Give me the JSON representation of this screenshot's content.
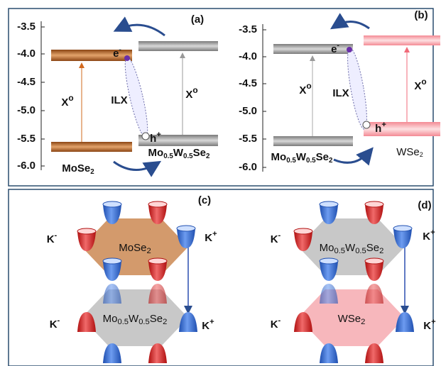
{
  "panel_labels": [
    "(a)",
    "(b)",
    "(c)",
    "(d)"
  ],
  "energy_ticks": [
    "-3.5",
    "-4.0",
    "-4.5",
    "-5.0",
    "-5.5",
    "-6.0"
  ],
  "materials": [
    [
      [
        "Mo"
      ],
      [
        "Se",
        "2"
      ]
    ],
    [
      [
        "Mo",
        "0.5"
      ],
      [
        "W",
        "0.5"
      ],
      [
        "Se",
        "2"
      ]
    ],
    [
      [
        "W"
      ],
      [
        "Se",
        "2"
      ]
    ]
  ],
  "exciton": [
    "X",
    "o"
  ],
  "interlayer": "ILX",
  "electron": [
    "e",
    "-"
  ],
  "hole": [
    "h",
    "+"
  ],
  "k_minus": [
    "K",
    "-"
  ],
  "k_plus": [
    "K",
    "+"
  ]
}
